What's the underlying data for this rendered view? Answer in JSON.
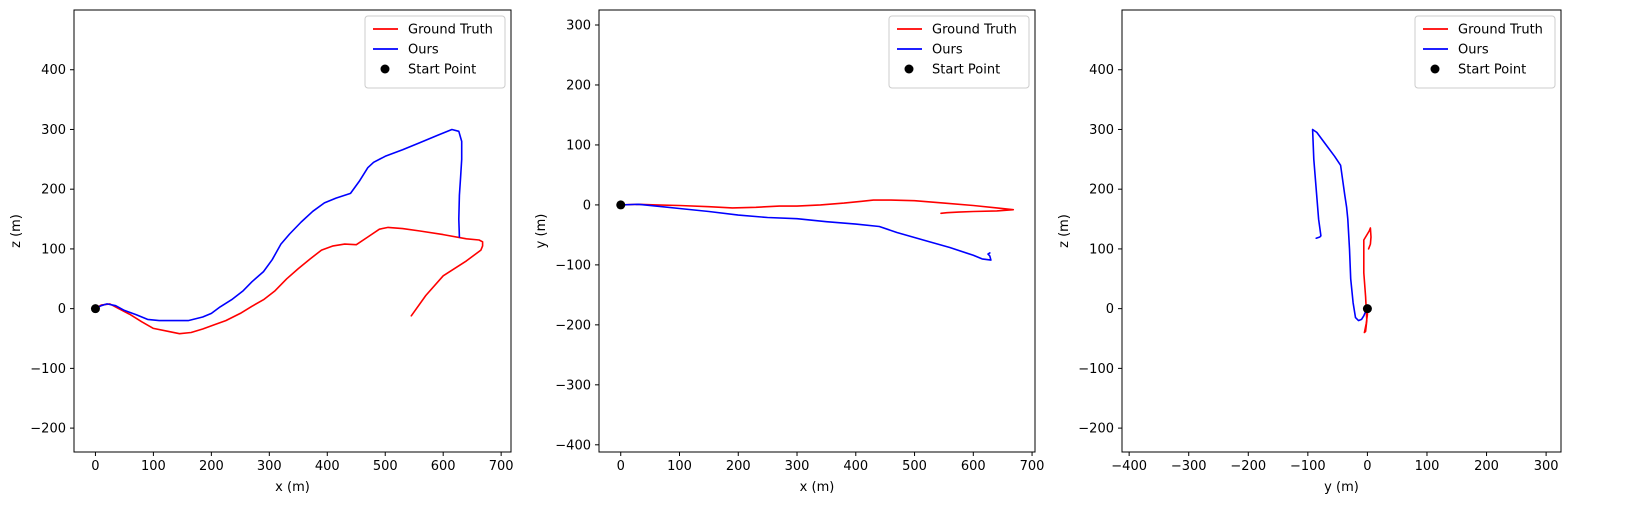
{
  "chart_data": [
    {
      "type": "line",
      "xlabel": "x (m)",
      "ylabel": "z (m)",
      "xlim": [
        -37,
        717
      ],
      "ylim": [
        -240,
        500
      ],
      "xticks": [
        0,
        100,
        200,
        300,
        400,
        500,
        600,
        700
      ],
      "yticks": [
        -200,
        -100,
        0,
        100,
        200,
        300,
        400
      ],
      "tick_labels_x": [
        "0",
        "100",
        "200",
        "300",
        "400",
        "500",
        "600",
        "700"
      ],
      "tick_labels_y": [
        "−200",
        "−100",
        "0",
        "100",
        "200",
        "300",
        "400"
      ],
      "legend": {
        "placement": "upper right",
        "entries": [
          "Ground Truth",
          "Ours",
          "Start Point"
        ]
      },
      "series": [
        {
          "name": "Ground Truth",
          "color": "#ff0000",
          "x": [
            0,
            10,
            25,
            40,
            60,
            80,
            100,
            125,
            145,
            165,
            185,
            205,
            225,
            250,
            270,
            290,
            310,
            330,
            350,
            370,
            390,
            410,
            430,
            450,
            470,
            490,
            505,
            530,
            560,
            600,
            640,
            662,
            668,
            668,
            665,
            640,
            600,
            570,
            545
          ],
          "y": [
            0,
            6,
            8,
            0,
            -10,
            -22,
            -33,
            -38,
            -42,
            -40,
            -34,
            -27,
            -20,
            -8,
            4,
            15,
            30,
            50,
            67,
            83,
            98,
            105,
            108,
            107,
            120,
            133,
            136,
            134,
            130,
            124,
            117,
            115,
            112,
            105,
            98,
            80,
            55,
            22,
            -12
          ]
        },
        {
          "name": "Ours",
          "color": "#0000ff",
          "x": [
            0,
            10,
            20,
            35,
            50,
            70,
            90,
            110,
            130,
            160,
            185,
            200,
            215,
            235,
            255,
            270,
            290,
            305,
            320,
            335,
            355,
            375,
            395,
            415,
            440,
            455,
            470,
            480,
            500,
            530,
            560,
            590,
            615,
            627,
            632,
            632,
            630,
            628,
            627,
            628
          ],
          "y": [
            0,
            5,
            8,
            5,
            -3,
            -10,
            -18,
            -20,
            -20,
            -20,
            -14,
            -8,
            3,
            15,
            30,
            45,
            62,
            82,
            108,
            125,
            145,
            163,
            177,
            185,
            193,
            213,
            236,
            245,
            255,
            266,
            278,
            290,
            300,
            297,
            280,
            250,
            220,
            190,
            150,
            120
          ]
        },
        {
          "name": "Start Point",
          "color": "#000000",
          "marker": "circle",
          "x": [
            0
          ],
          "y": [
            0
          ]
        }
      ]
    },
    {
      "type": "line",
      "xlabel": "x (m)",
      "ylabel": "y (m)",
      "xlim": [
        -37,
        705
      ],
      "ylim": [
        -412,
        325
      ],
      "xticks": [
        0,
        100,
        200,
        300,
        400,
        500,
        600,
        700
      ],
      "yticks": [
        -400,
        -300,
        -200,
        -100,
        0,
        100,
        200,
        300
      ],
      "tick_labels_x": [
        "0",
        "100",
        "200",
        "300",
        "400",
        "500",
        "600",
        "700"
      ],
      "tick_labels_y": [
        "−400",
        "−300",
        "−200",
        "−100",
        "0",
        "100",
        "200",
        "300"
      ],
      "legend": {
        "placement": "upper right",
        "entries": [
          "Ground Truth",
          "Ours",
          "Start Point"
        ]
      },
      "series": [
        {
          "name": "Ground Truth",
          "color": "#ff0000",
          "x": [
            0,
            30,
            60,
            100,
            150,
            190,
            230,
            270,
            300,
            340,
            380,
            410,
            430,
            460,
            500,
            550,
            600,
            640,
            668,
            640,
            600,
            575,
            555,
            545
          ],
          "y": [
            0,
            1,
            0,
            -1,
            -3,
            -5,
            -4,
            -2,
            -2,
            0,
            3,
            6,
            8,
            8,
            7,
            3,
            -1,
            -5,
            -8,
            -10,
            -11,
            -12,
            -13,
            -14
          ]
        },
        {
          "name": "Ours",
          "color": "#0000ff",
          "x": [
            0,
            30,
            60,
            100,
            150,
            200,
            250,
            300,
            350,
            400,
            440,
            470,
            520,
            560,
            600,
            615,
            630,
            628,
            625,
            628
          ],
          "y": [
            0,
            1,
            -2,
            -6,
            -11,
            -17,
            -21,
            -23,
            -28,
            -32,
            -36,
            -46,
            -60,
            -71,
            -84,
            -90,
            -92,
            -85,
            -82,
            -80
          ]
        },
        {
          "name": "Start Point",
          "color": "#000000",
          "marker": "circle",
          "x": [
            0
          ],
          "y": [
            0
          ]
        }
      ]
    },
    {
      "type": "line",
      "xlabel": "y (m)",
      "ylabel": "z (m)",
      "xlim": [
        -412,
        325
      ],
      "ylim": [
        -240,
        500
      ],
      "xticks": [
        -400,
        -300,
        -200,
        -100,
        0,
        100,
        200,
        300
      ],
      "yticks": [
        -200,
        -100,
        0,
        100,
        200,
        300,
        400
      ],
      "tick_labels_x": [
        "−400",
        "−300",
        "−200",
        "−100",
        "0",
        "100",
        "200",
        "300"
      ],
      "tick_labels_y": [
        "−200",
        "−100",
        "0",
        "100",
        "200",
        "300",
        "400"
      ],
      "legend": {
        "placement": "upper right",
        "entries": [
          "Ground Truth",
          "Ours",
          "Start Point"
        ]
      },
      "series": [
        {
          "name": "Ground Truth",
          "color": "#ff0000",
          "x": [
            0,
            0,
            -2,
            -4,
            -5,
            -3,
            -1,
            -3,
            -6,
            -6,
            0,
            3,
            5,
            6,
            5,
            2
          ],
          "y": [
            0,
            -10,
            -25,
            -35,
            -40,
            -38,
            -20,
            20,
            60,
            115,
            125,
            130,
            135,
            120,
            108,
            100
          ]
        },
        {
          "name": "Ours",
          "color": "#0000ff",
          "x": [
            0,
            -3,
            -6,
            -10,
            -15,
            -20,
            -24,
            -28,
            -30,
            -33,
            -35,
            -38,
            -45,
            -55,
            -70,
            -85,
            -92,
            -90,
            -86,
            -82,
            -78,
            -80,
            -86
          ],
          "y": [
            0,
            -5,
            -12,
            -18,
            -20,
            -15,
            10,
            50,
            100,
            150,
            170,
            190,
            240,
            255,
            275,
            295,
            300,
            250,
            200,
            150,
            122,
            120,
            118
          ]
        },
        {
          "name": "Start Point",
          "color": "#000000",
          "marker": "circle",
          "x": [
            0
          ],
          "y": [
            0
          ]
        }
      ]
    }
  ]
}
